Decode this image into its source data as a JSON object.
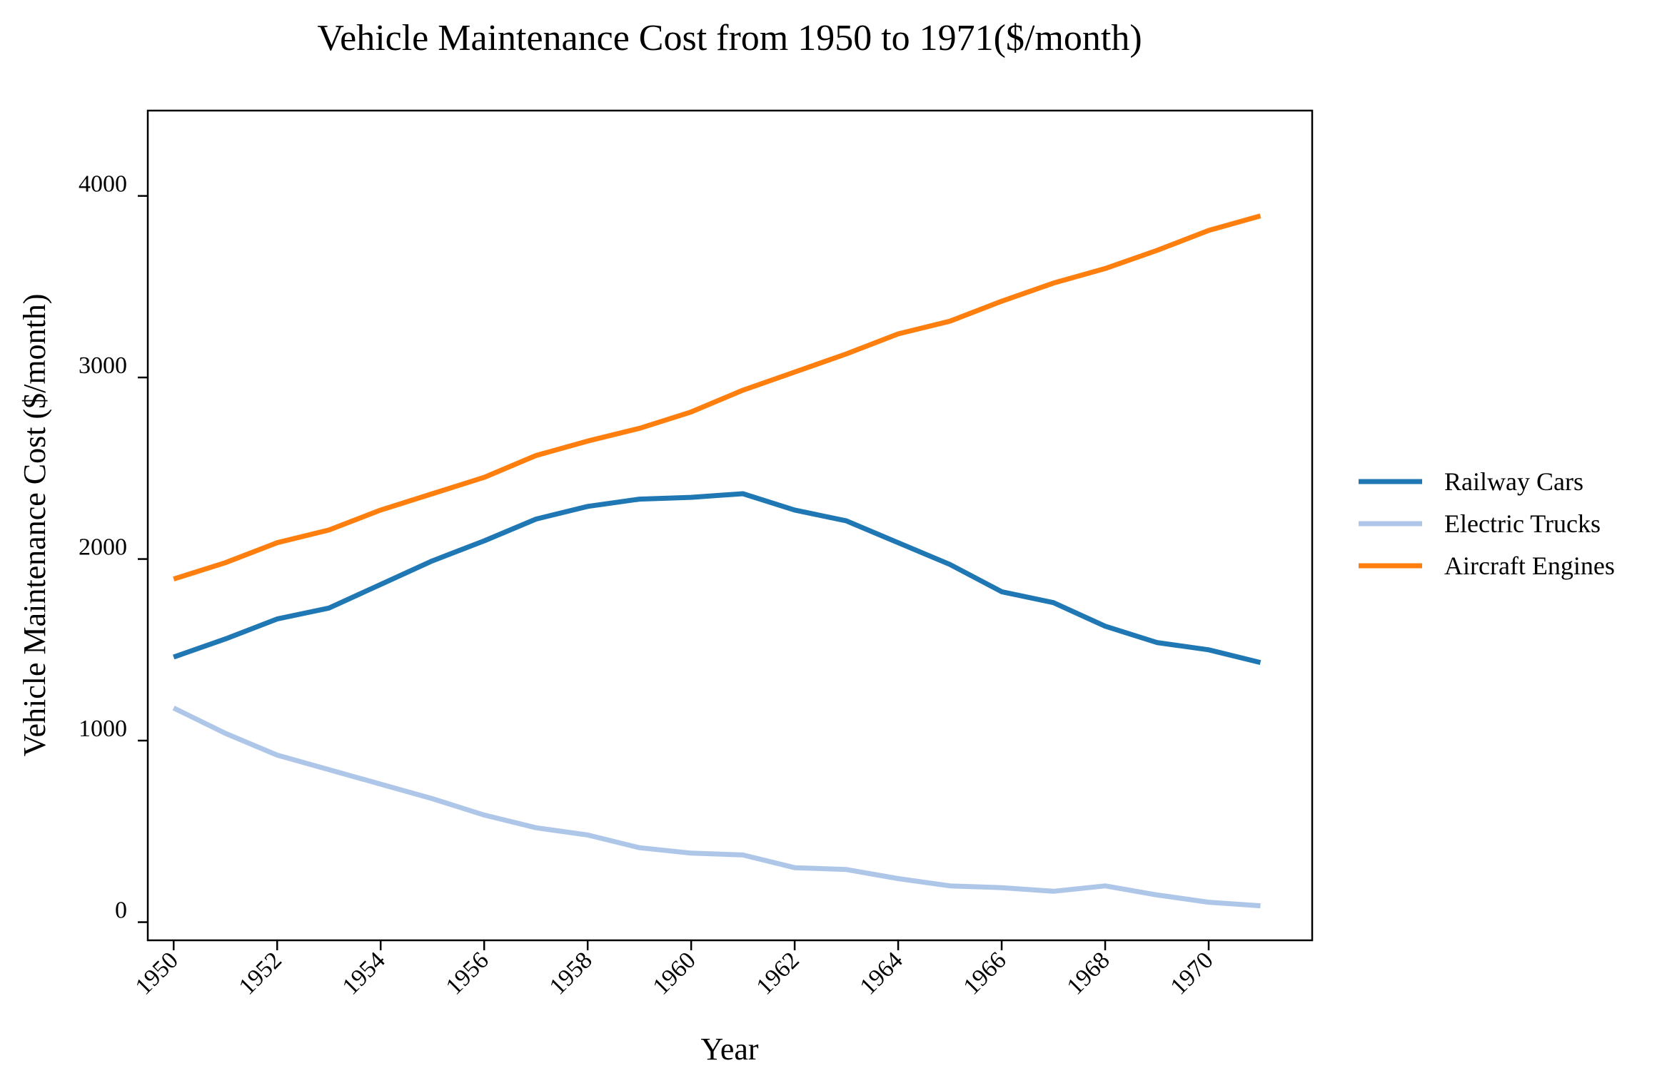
{
  "chart_data": {
    "type": "line",
    "title": "Vehicle Maintenance Cost from 1950 to 1971($/month)",
    "xlabel": "Year",
    "ylabel": "Vehicle Maintenance Cost ($/month)",
    "x": [
      1950,
      1951,
      1952,
      1953,
      1954,
      1955,
      1956,
      1957,
      1958,
      1959,
      1960,
      1961,
      1962,
      1963,
      1964,
      1965,
      1966,
      1967,
      1968,
      1969,
      1970,
      1971
    ],
    "xticks": [
      "1950",
      "1952",
      "1954",
      "1956",
      "1958",
      "1960",
      "1962",
      "1964",
      "1966",
      "1968",
      "1970"
    ],
    "yticks": [
      "0",
      "1000",
      "2000",
      "3000",
      "4000"
    ],
    "xlim": [
      1949.5,
      1972.0
    ],
    "ylim": [
      -100,
      4470
    ],
    "grid": false,
    "legend_position": "right",
    "series": [
      {
        "name": "Railway Cars",
        "color": "#1f77b4",
        "values": [
          1460,
          1560,
          1670,
          1730,
          1860,
          1990,
          2100,
          2220,
          2290,
          2330,
          2340,
          2360,
          2270,
          2210,
          2090,
          1970,
          1820,
          1760,
          1630,
          1540,
          1500,
          1430
        ]
      },
      {
        "name": "Electric Trucks",
        "color": "#aec7e8",
        "values": [
          1180,
          1040,
          920,
          840,
          760,
          680,
          590,
          520,
          480,
          410,
          380,
          370,
          300,
          290,
          240,
          200,
          190,
          170,
          200,
          150,
          110,
          90
        ]
      },
      {
        "name": "Aircraft Engines",
        "color": "#ff7f0e",
        "values": [
          1890,
          1980,
          2090,
          2160,
          2270,
          2360,
          2450,
          2570,
          2650,
          2720,
          2810,
          2930,
          3030,
          3130,
          3240,
          3310,
          3420,
          3520,
          3600,
          3700,
          3810,
          3890
        ]
      }
    ]
  }
}
